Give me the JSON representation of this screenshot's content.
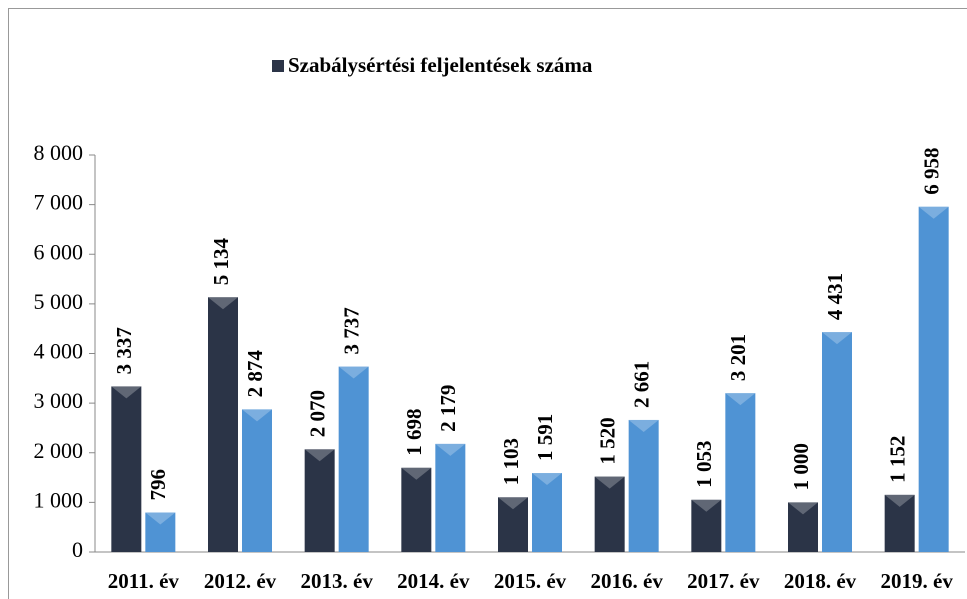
{
  "chart_data": {
    "type": "bar",
    "categories": [
      "2011. év",
      "2012. év",
      "2013. év",
      "2014. év",
      "2015. év",
      "2016. év",
      "2017. év",
      "2018. év",
      "2019. év"
    ],
    "series": [
      {
        "name": "Szabálysértési feljelentések száma",
        "color": "#2b3447",
        "values": [
          3337,
          5134,
          2070,
          1698,
          1103,
          1520,
          1053,
          1000,
          1152
        ],
        "value_labels": [
          "3 337",
          "5 134",
          "2 070",
          "1 698",
          "1 103",
          "1 520",
          "1 053",
          "1 000",
          "1 152"
        ]
      },
      {
        "color": "#4f93d4",
        "values": [
          796,
          2874,
          3737,
          2179,
          1591,
          2661,
          3201,
          4431,
          6958
        ],
        "value_labels": [
          "796",
          "2 874",
          "3 737",
          "2 179",
          "1 591",
          "2 661",
          "3 201",
          "4 431",
          "6 958"
        ]
      }
    ],
    "ylim": [
      0,
      8000
    ],
    "yticks": [
      0,
      {
        "value": 1000,
        "label": "1 000"
      },
      {
        "value": 2000,
        "label": "2 000"
      },
      {
        "value": 3000,
        "label": "3 000"
      },
      {
        "value": 4000,
        "label": "4 000"
      },
      {
        "value": 5000,
        "label": "5 000"
      },
      {
        "value": 6000,
        "label": "6 000"
      },
      {
        "value": 7000,
        "label": "7 000"
      },
      {
        "value": 8000,
        "label": "8 000"
      }
    ],
    "legend": "top"
  }
}
